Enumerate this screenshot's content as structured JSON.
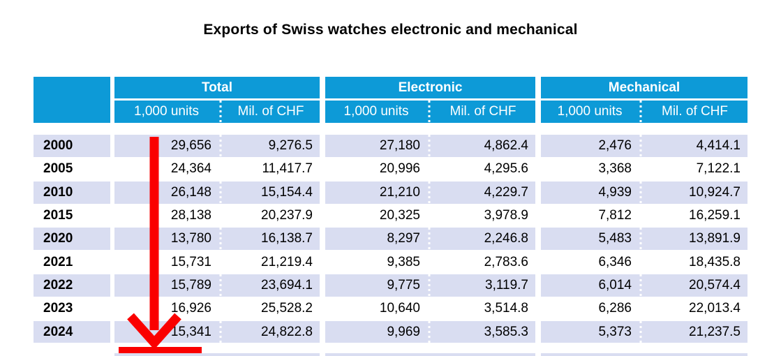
{
  "title": "Exports of Swiss watches electronic and mechanical",
  "colors": {
    "header_blue": "#0D9AD7",
    "header_text": "#FFFFFF",
    "row_alternate": "#D9DDF1",
    "row_plain": "#FFFFFF",
    "body_text": "#000000",
    "arrow_red": "#FA0000"
  },
  "table": {
    "groups": [
      "Total",
      "Electronic",
      "Mechanical"
    ],
    "subheaders": [
      "1,000 units",
      "Mil. of CHF"
    ],
    "rows": [
      {
        "year": "2000",
        "total_units": "29,656",
        "total_chf": "9,276.5",
        "electronic_units": "27,180",
        "electronic_chf": "4,862.4",
        "mechanical_units": "2,476",
        "mechanical_chf": "4,414.1"
      },
      {
        "year": "2005",
        "total_units": "24,364",
        "total_chf": "11,417.7",
        "electronic_units": "20,996",
        "electronic_chf": "4,295.6",
        "mechanical_units": "3,368",
        "mechanical_chf": "7,122.1"
      },
      {
        "year": "2010",
        "total_units": "26,148",
        "total_chf": "15,154.4",
        "electronic_units": "21,210",
        "electronic_chf": "4,229.7",
        "mechanical_units": "4,939",
        "mechanical_chf": "10,924.7"
      },
      {
        "year": "2015",
        "total_units": "28,138",
        "total_chf": "20,237.9",
        "electronic_units": "20,325",
        "electronic_chf": "3,978.9",
        "mechanical_units": "7,812",
        "mechanical_chf": "16,259.1"
      },
      {
        "year": "2020",
        "total_units": "13,780",
        "total_chf": "16,138.7",
        "electronic_units": "8,297",
        "electronic_chf": "2,246.8",
        "mechanical_units": "5,483",
        "mechanical_chf": "13,891.9"
      },
      {
        "year": "2021",
        "total_units": "15,731",
        "total_chf": "21,219.4",
        "electronic_units": "9,385",
        "electronic_chf": "2,783.6",
        "mechanical_units": "6,346",
        "mechanical_chf": "18,435.8"
      },
      {
        "year": "2022",
        "total_units": "15,789",
        "total_chf": "23,694.1",
        "electronic_units": "9,775",
        "electronic_chf": "3,119.7",
        "mechanical_units": "6,014",
        "mechanical_chf": "20,574.4"
      },
      {
        "year": "2023",
        "total_units": "16,926",
        "total_chf": "25,528.2",
        "electronic_units": "10,640",
        "electronic_chf": "3,514.8",
        "mechanical_units": "6,286",
        "mechanical_chf": "22,013.4"
      },
      {
        "year": "2024",
        "total_units": "15,341",
        "total_chf": "24,822.8",
        "electronic_units": "9,969",
        "electronic_chf": "3,585.3",
        "mechanical_units": "5,373",
        "mechanical_chf": "21,237.5"
      }
    ]
  },
  "annotation": {
    "shape": "thick red arrow pointing down along the Total 1,000 units column with red underline bar at bottom",
    "color": "#FA0000"
  }
}
